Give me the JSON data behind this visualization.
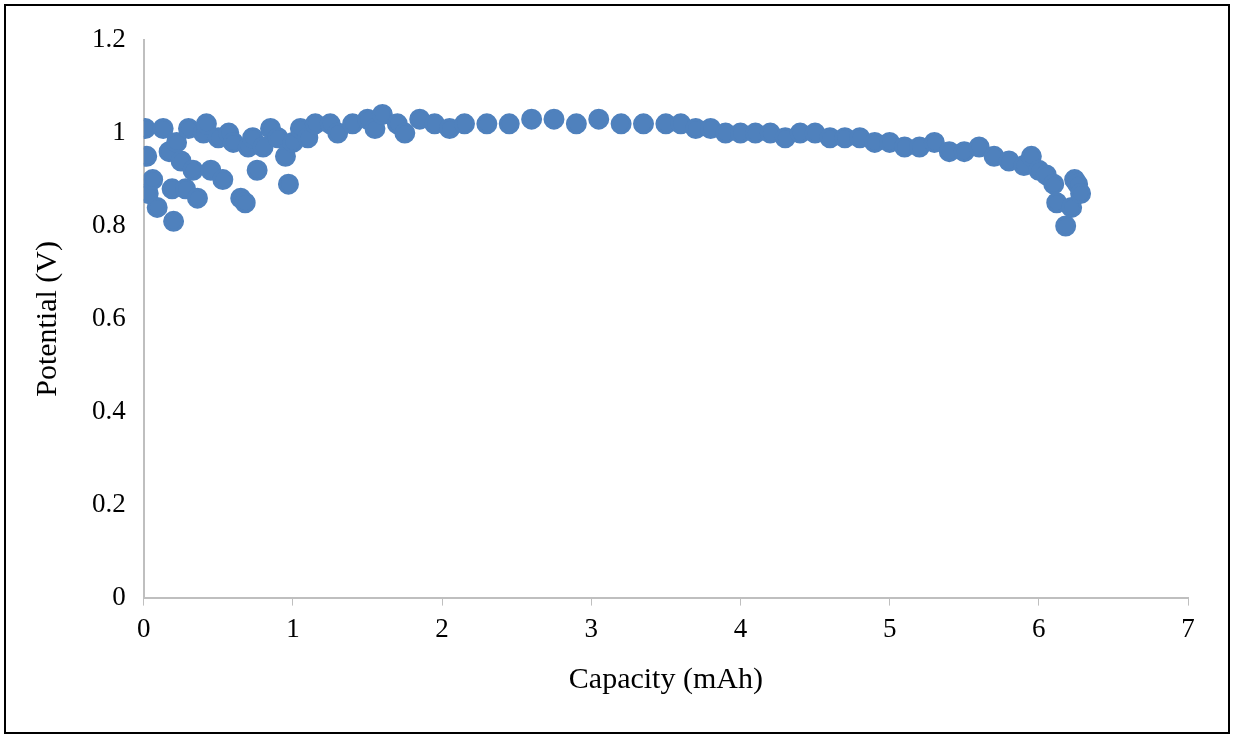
{
  "chart_data": {
    "type": "scatter",
    "xlabel": "Capacity (mAh)",
    "ylabel": "Potential (V)",
    "xlim": [
      0,
      7
    ],
    "xticks": [
      0,
      1,
      2,
      3,
      4,
      5,
      6,
      7
    ],
    "ylim": [
      0,
      1.2
    ],
    "yticks": [
      0,
      0.2,
      0.4,
      0.6,
      0.8,
      1,
      1.2
    ],
    "grid": false,
    "legend": false,
    "marker": "circle",
    "series": [
      {
        "color": "#4f81bd",
        "x": [
          0.01,
          0.02,
          0.03,
          0.06,
          0.09,
          0.13,
          0.17,
          0.19,
          0.2,
          0.22,
          0.25,
          0.28,
          0.3,
          0.33,
          0.36,
          0.4,
          0.42,
          0.45,
          0.5,
          0.53,
          0.57,
          0.6,
          0.65,
          0.68,
          0.7,
          0.73,
          0.76,
          0.8,
          0.85,
          0.9,
          0.95,
          0.97,
          1.0,
          1.05,
          1.1,
          1.15,
          1.25,
          1.3,
          1.4,
          1.5,
          1.55,
          1.6,
          1.7,
          1.75,
          1.85,
          1.95,
          2.05,
          2.15,
          2.3,
          2.45,
          2.6,
          2.75,
          2.9,
          3.05,
          3.2,
          3.35,
          3.5,
          3.6,
          3.7,
          3.8,
          3.9,
          4.0,
          4.1,
          4.2,
          4.3,
          4.4,
          4.5,
          4.6,
          4.7,
          4.8,
          4.9,
          5.0,
          5.1,
          5.2,
          5.3,
          5.4,
          5.5,
          5.6,
          5.7,
          5.8,
          5.9,
          5.95,
          6.0,
          6.05,
          6.1,
          6.12,
          6.18,
          6.22,
          6.24,
          6.26,
          6.28
        ],
        "values": [
          1.01,
          0.95,
          0.87,
          0.9,
          0.84,
          1.01,
          0.96,
          0.88,
          0.81,
          0.98,
          0.94,
          0.88,
          1.01,
          0.92,
          0.86,
          1.0,
          1.02,
          0.92,
          0.99,
          0.9,
          1.0,
          0.98,
          0.86,
          0.85,
          0.97,
          0.99,
          0.92,
          0.97,
          1.01,
          0.99,
          0.95,
          0.89,
          0.98,
          1.01,
          0.99,
          1.02,
          1.02,
          1.0,
          1.02,
          1.03,
          1.01,
          1.04,
          1.02,
          1.0,
          1.03,
          1.02,
          1.01,
          1.02,
          1.02,
          1.02,
          1.03,
          1.03,
          1.02,
          1.03,
          1.02,
          1.02,
          1.02,
          1.02,
          1.01,
          1.01,
          1.0,
          1.0,
          1.0,
          1.0,
          0.99,
          1.0,
          1.0,
          0.99,
          0.99,
          0.99,
          0.98,
          0.98,
          0.97,
          0.97,
          0.98,
          0.96,
          0.96,
          0.97,
          0.95,
          0.94,
          0.93,
          0.95,
          0.92,
          0.91,
          0.89,
          0.85,
          0.8,
          0.84,
          0.9,
          0.89,
          0.87
        ]
      }
    ]
  }
}
